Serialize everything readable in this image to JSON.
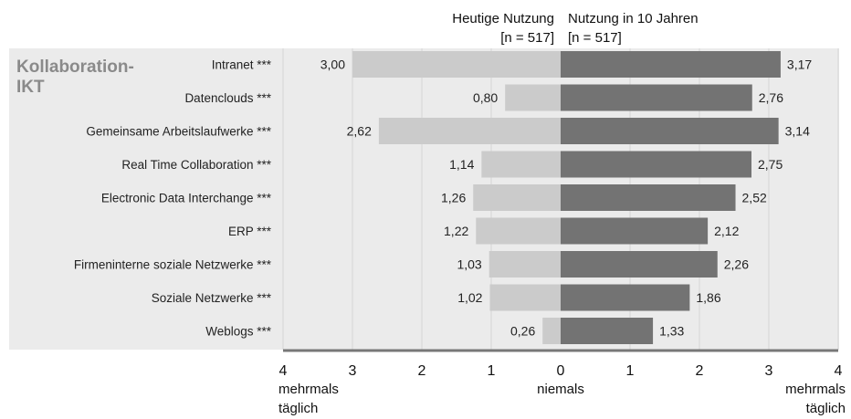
{
  "chart_data": {
    "type": "bar",
    "orientation": "horizontal-diverging",
    "group_label_line1": "Kollaboration-",
    "group_label_line2": "IKT",
    "series": [
      {
        "name_line1": "Heutige Nutzung",
        "name_line2": "[n = 517]",
        "side": "left",
        "color": "#cbcbcb",
        "values": [
          3.0,
          0.8,
          2.62,
          1.14,
          1.26,
          1.22,
          1.03,
          1.02,
          0.26
        ],
        "labels": [
          "3,00",
          "0,80",
          "2,62",
          "1,14",
          "1,26",
          "1,22",
          "1,03",
          "1,02",
          "0,26"
        ]
      },
      {
        "name_line1": "Nutzung in 10 Jahren",
        "name_line2": "[n = 517]",
        "side": "right",
        "color": "#737373",
        "values": [
          3.17,
          2.76,
          3.14,
          2.75,
          2.52,
          2.12,
          2.26,
          1.86,
          1.33
        ],
        "labels": [
          "3,17",
          "2,76",
          "3,14",
          "2,75",
          "2,52",
          "2,12",
          "2,26",
          "1,86",
          "1,33"
        ]
      }
    ],
    "categories": [
      "Intranet ***",
      "Datenclouds ***",
      "Gemeinsame Arbeitslaufwerke ***",
      "Real Time Collaboration ***",
      "Electronic Data Interchange ***",
      "ERP ***",
      "Firmeninterne soziale Netzwerke ***",
      "Soziale Netzwerke ***",
      "Weblogs ***"
    ],
    "xlim": [
      -4,
      4
    ],
    "x_ticks": [
      "4",
      "3",
      "2",
      "1",
      "0",
      "1",
      "2",
      "3",
      "4"
    ],
    "axis_label_left_line1": "mehrmals",
    "axis_label_left_line2": "täglich",
    "axis_label_center": "niemals",
    "axis_label_right_line1": "mehrmals",
    "axis_label_right_line2": "täglich",
    "grid": true,
    "panel_color": "#ebebeb",
    "gridline_color": "#d4d4d4"
  }
}
